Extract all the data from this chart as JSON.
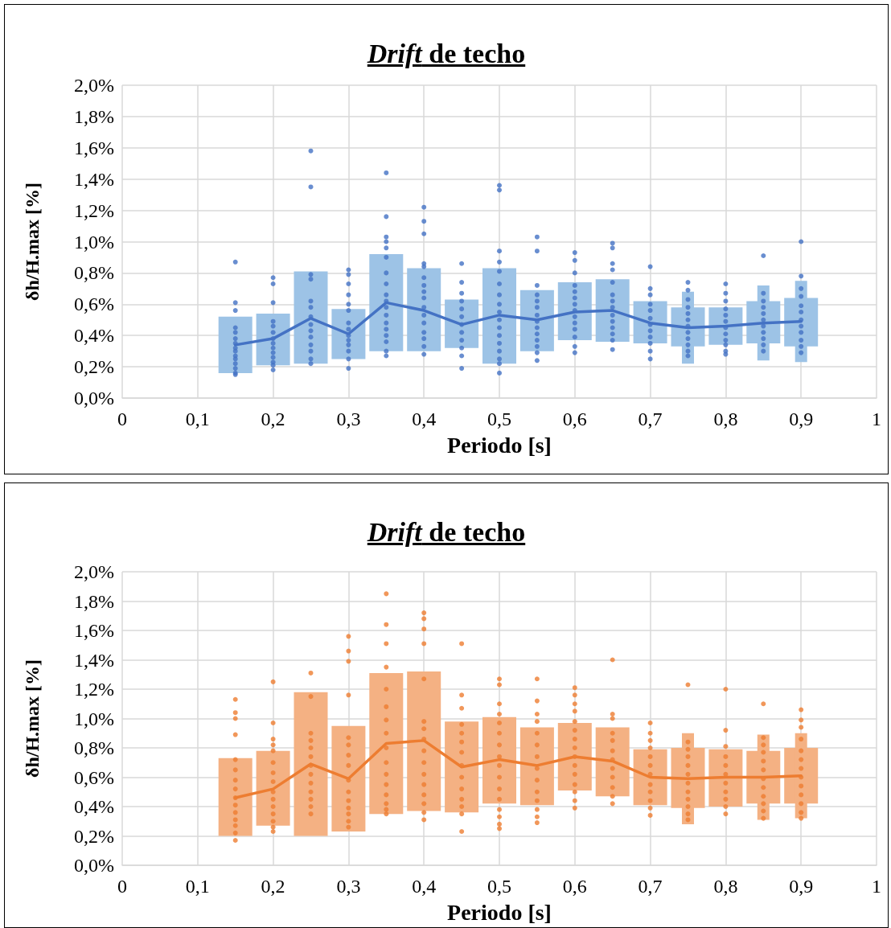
{
  "chart_data": [
    {
      "type": "bar",
      "title": "Drift de techo",
      "xlabel": "Periodo [s]",
      "ylabel": "δh/H.max [%]",
      "grid": true,
      "xlim": [
        0,
        1
      ],
      "xticks": [
        {
          "value": 0,
          "label": "0"
        },
        {
          "value": 0.1,
          "label": "0,1"
        },
        {
          "value": 0.2,
          "label": "0,2"
        },
        {
          "value": 0.3,
          "label": "0,3"
        },
        {
          "value": 0.4,
          "label": "0,4"
        },
        {
          "value": 0.5,
          "label": "0,5"
        },
        {
          "value": 0.6,
          "label": "0,6"
        },
        {
          "value": 0.7,
          "label": "0,7"
        },
        {
          "value": 0.8,
          "label": "0,8"
        },
        {
          "value": 0.9,
          "label": "0,9"
        },
        {
          "value": 1,
          "label": "1"
        }
      ],
      "ylim": [
        0,
        2
      ],
      "yticks": [
        {
          "value": 0,
          "label": "0,0%"
        },
        {
          "value": 0.2,
          "label": "0,2%"
        },
        {
          "value": 0.4,
          "label": "0,4%"
        },
        {
          "value": 0.6,
          "label": "0,6%"
        },
        {
          "value": 0.8,
          "label": "0,8%"
        },
        {
          "value": 1,
          "label": "1,0%"
        },
        {
          "value": 1.2,
          "label": "1,2%"
        },
        {
          "value": 1.4,
          "label": "1,4%"
        },
        {
          "value": 1.6,
          "label": "1,6%"
        },
        {
          "value": 1.8,
          "label": "1,8%"
        },
        {
          "value": 2,
          "label": "2,0%"
        }
      ],
      "series": [
        {
          "color": "#9dc3e6",
          "x": [
            0.15,
            0.2,
            0.25,
            0.3,
            0.35,
            0.4,
            0.45,
            0.5,
            0.55,
            0.6,
            0.65,
            0.7,
            0.75,
            0.8,
            0.85,
            0.9
          ],
          "base": [
            0.16,
            0.21,
            0.22,
            0.25,
            0.3,
            0.3,
            0.32,
            0.22,
            0.3,
            0.37,
            0.36,
            0.35,
            0.33,
            0.34,
            0.35,
            0.33
          ],
          "values": [
            0.36,
            0.33,
            0.59,
            0.32,
            0.62,
            0.53,
            0.31,
            0.61,
            0.39,
            0.37,
            0.4,
            0.27,
            0.25,
            0.24,
            0.27,
            0.31
          ]
        },
        {
          "color": "#9dc3e6",
          "x": [
            0.75,
            0.85,
            0.9
          ],
          "base": [
            0.22,
            0.24,
            0.23
          ],
          "values": [
            0.46,
            0.48,
            0.52
          ]
        },
        {
          "type": "scatter",
          "color": "#4472c4",
          "marker": "circle",
          "x": [
            0.15,
            0.15,
            0.15,
            0.15,
            0.15,
            0.15,
            0.15,
            0.15,
            0.15,
            0.15,
            0.15,
            0.15,
            0.15,
            0.15,
            0.15
          ],
          "values": [
            0.87,
            0.61,
            0.56,
            0.45,
            0.42,
            0.38,
            0.35,
            0.32,
            0.3,
            0.27,
            0.25,
            0.22,
            0.19,
            0.16,
            0.15
          ]
        },
        {
          "type": "scatter",
          "color": "#4472c4",
          "marker": "circle",
          "x": [
            0.2,
            0.2,
            0.2,
            0.2,
            0.2,
            0.2,
            0.2,
            0.2,
            0.2,
            0.2,
            0.2,
            0.2,
            0.2,
            0.2
          ],
          "values": [
            0.77,
            0.73,
            0.61,
            0.49,
            0.46,
            0.42,
            0.38,
            0.35,
            0.32,
            0.29,
            0.26,
            0.23,
            0.21,
            0.18
          ]
        },
        {
          "type": "scatter",
          "color": "#4472c4",
          "marker": "circle",
          "x": [
            0.25,
            0.25,
            0.25,
            0.25,
            0.25,
            0.25,
            0.25,
            0.25,
            0.25,
            0.25,
            0.25,
            0.25,
            0.25,
            0.25
          ],
          "values": [
            1.58,
            1.35,
            0.79,
            0.76,
            0.62,
            0.58,
            0.52,
            0.47,
            0.43,
            0.39,
            0.34,
            0.3,
            0.25,
            0.22
          ]
        },
        {
          "type": "scatter",
          "color": "#4472c4",
          "marker": "circle",
          "x": [
            0.3,
            0.3,
            0.3,
            0.3,
            0.3,
            0.3,
            0.3,
            0.3,
            0.3,
            0.3,
            0.3,
            0.3,
            0.3,
            0.3
          ],
          "values": [
            0.82,
            0.79,
            0.73,
            0.66,
            0.6,
            0.56,
            0.48,
            0.44,
            0.4,
            0.37,
            0.34,
            0.3,
            0.25,
            0.19
          ]
        },
        {
          "type": "scatter",
          "color": "#4472c4",
          "marker": "circle",
          "x": [
            0.35,
            0.35,
            0.35,
            0.35,
            0.35,
            0.35,
            0.35,
            0.35,
            0.35,
            0.35,
            0.35,
            0.35,
            0.35,
            0.35,
            0.35,
            0.35,
            0.35,
            0.35
          ],
          "values": [
            1.44,
            1.16,
            1.03,
            1.0,
            0.96,
            0.9,
            0.8,
            0.73,
            0.66,
            0.62,
            0.58,
            0.53,
            0.48,
            0.44,
            0.4,
            0.36,
            0.3,
            0.27
          ]
        },
        {
          "type": "scatter",
          "color": "#4472c4",
          "marker": "circle",
          "x": [
            0.4,
            0.4,
            0.4,
            0.4,
            0.4,
            0.4,
            0.4,
            0.4,
            0.4,
            0.4,
            0.4,
            0.4,
            0.4,
            0.4,
            0.4,
            0.4
          ],
          "values": [
            1.22,
            1.13,
            1.05,
            0.86,
            0.84,
            0.77,
            0.72,
            0.68,
            0.64,
            0.58,
            0.53,
            0.48,
            0.42,
            0.38,
            0.33,
            0.28
          ]
        },
        {
          "type": "scatter",
          "color": "#4472c4",
          "marker": "circle",
          "x": [
            0.45,
            0.45,
            0.45,
            0.45,
            0.45,
            0.45,
            0.45,
            0.45,
            0.45,
            0.45,
            0.45,
            0.45
          ],
          "values": [
            0.86,
            0.74,
            0.67,
            0.62,
            0.57,
            0.52,
            0.47,
            0.42,
            0.37,
            0.32,
            0.27,
            0.19
          ]
        },
        {
          "type": "scatter",
          "color": "#4472c4",
          "marker": "circle",
          "x": [
            0.5,
            0.5,
            0.5,
            0.5,
            0.5,
            0.5,
            0.5,
            0.5,
            0.5,
            0.5,
            0.5,
            0.5,
            0.5,
            0.5,
            0.5,
            0.5,
            0.5
          ],
          "values": [
            1.36,
            1.33,
            0.94,
            0.87,
            0.81,
            0.73,
            0.66,
            0.6,
            0.55,
            0.5,
            0.45,
            0.4,
            0.35,
            0.3,
            0.25,
            0.22,
            0.16
          ]
        },
        {
          "type": "scatter",
          "color": "#4472c4",
          "marker": "circle",
          "x": [
            0.55,
            0.55,
            0.55,
            0.55,
            0.55,
            0.55,
            0.55,
            0.55,
            0.55,
            0.55,
            0.55,
            0.55,
            0.55,
            0.55
          ],
          "values": [
            1.03,
            0.94,
            0.72,
            0.66,
            0.62,
            0.58,
            0.53,
            0.49,
            0.45,
            0.41,
            0.37,
            0.33,
            0.29,
            0.24
          ]
        },
        {
          "type": "scatter",
          "color": "#4472c4",
          "marker": "circle",
          "x": [
            0.6,
            0.6,
            0.6,
            0.6,
            0.6,
            0.6,
            0.6,
            0.6,
            0.6,
            0.6,
            0.6,
            0.6,
            0.6,
            0.6
          ],
          "values": [
            0.93,
            0.88,
            0.8,
            0.72,
            0.68,
            0.64,
            0.6,
            0.56,
            0.52,
            0.48,
            0.44,
            0.39,
            0.33,
            0.29
          ]
        },
        {
          "type": "scatter",
          "color": "#4472c4",
          "marker": "circle",
          "x": [
            0.65,
            0.65,
            0.65,
            0.65,
            0.65,
            0.65,
            0.65,
            0.65,
            0.65,
            0.65,
            0.65,
            0.65,
            0.65,
            0.65
          ],
          "values": [
            0.99,
            0.96,
            0.86,
            0.82,
            0.74,
            0.66,
            0.62,
            0.58,
            0.53,
            0.49,
            0.45,
            0.41,
            0.37,
            0.31
          ]
        },
        {
          "type": "scatter",
          "color": "#4472c4",
          "marker": "circle",
          "x": [
            0.7,
            0.7,
            0.7,
            0.7,
            0.7,
            0.7,
            0.7,
            0.7,
            0.7,
            0.7,
            0.7,
            0.7
          ],
          "values": [
            0.84,
            0.7,
            0.66,
            0.6,
            0.56,
            0.51,
            0.47,
            0.43,
            0.39,
            0.35,
            0.3,
            0.25
          ]
        },
        {
          "type": "scatter",
          "color": "#4472c4",
          "marker": "circle",
          "x": [
            0.75,
            0.75,
            0.75,
            0.75,
            0.75,
            0.75,
            0.75,
            0.75,
            0.75,
            0.75,
            0.75,
            0.75
          ],
          "values": [
            0.74,
            0.69,
            0.63,
            0.58,
            0.54,
            0.5,
            0.46,
            0.42,
            0.38,
            0.34,
            0.3,
            0.27
          ]
        },
        {
          "type": "scatter",
          "color": "#4472c4",
          "marker": "circle",
          "x": [
            0.8,
            0.8,
            0.8,
            0.8,
            0.8,
            0.8,
            0.8,
            0.8,
            0.8,
            0.8,
            0.8,
            0.8
          ],
          "values": [
            0.73,
            0.67,
            0.62,
            0.57,
            0.53,
            0.49,
            0.45,
            0.41,
            0.37,
            0.34,
            0.3,
            0.28
          ]
        },
        {
          "type": "scatter",
          "color": "#4472c4",
          "marker": "circle",
          "x": [
            0.85,
            0.85,
            0.85,
            0.85,
            0.85,
            0.85,
            0.85,
            0.85,
            0.85,
            0.85,
            0.85
          ],
          "values": [
            0.91,
            0.67,
            0.62,
            0.58,
            0.54,
            0.5,
            0.46,
            0.42,
            0.38,
            0.34,
            0.3
          ]
        },
        {
          "type": "scatter",
          "color": "#4472c4",
          "marker": "circle",
          "x": [
            0.9,
            0.9,
            0.9,
            0.9,
            0.9,
            0.9,
            0.9,
            0.9,
            0.9,
            0.9,
            0.9,
            0.9
          ],
          "values": [
            1.0,
            0.78,
            0.7,
            0.65,
            0.59,
            0.55,
            0.5,
            0.46,
            0.42,
            0.37,
            0.33,
            0.29
          ]
        },
        {
          "type": "line",
          "color": "#4472c4",
          "marker": "none",
          "x": [
            0.15,
            0.2,
            0.25,
            0.3,
            0.35,
            0.4,
            0.45,
            0.5,
            0.55,
            0.6,
            0.65,
            0.7,
            0.75,
            0.8,
            0.85,
            0.9
          ],
          "values": [
            0.34,
            0.38,
            0.51,
            0.41,
            0.61,
            0.56,
            0.47,
            0.53,
            0.5,
            0.55,
            0.56,
            0.48,
            0.45,
            0.46,
            0.48,
            0.49
          ]
        }
      ]
    },
    {
      "type": "bar",
      "title": "Drift de techo",
      "xlabel": "Periodo [s]",
      "ylabel": "δh/H.max [%]",
      "grid": true,
      "xlim": [
        0,
        1
      ],
      "xticks": [
        {
          "value": 0,
          "label": "0"
        },
        {
          "value": 0.1,
          "label": "0,1"
        },
        {
          "value": 0.2,
          "label": "0,2"
        },
        {
          "value": 0.3,
          "label": "0,3"
        },
        {
          "value": 0.4,
          "label": "0,4"
        },
        {
          "value": 0.5,
          "label": "0,5"
        },
        {
          "value": 0.6,
          "label": "0,6"
        },
        {
          "value": 0.7,
          "label": "0,7"
        },
        {
          "value": 0.8,
          "label": "0,8"
        },
        {
          "value": 0.9,
          "label": "0,9"
        },
        {
          "value": 1,
          "label": "1"
        }
      ],
      "ylim": [
        0,
        2
      ],
      "yticks": [
        {
          "value": 0,
          "label": "0,0%"
        },
        {
          "value": 0.2,
          "label": "0,2%"
        },
        {
          "value": 0.4,
          "label": "0,4%"
        },
        {
          "value": 0.6,
          "label": "0,6%"
        },
        {
          "value": 0.8,
          "label": "0,8%"
        },
        {
          "value": 1,
          "label": "1,0%"
        },
        {
          "value": 1.2,
          "label": "1,2%"
        },
        {
          "value": 1.4,
          "label": "1,4%"
        },
        {
          "value": 1.6,
          "label": "1,6%"
        },
        {
          "value": 1.8,
          "label": "1,8%"
        },
        {
          "value": 2,
          "label": "2,0%"
        }
      ],
      "series": [
        {
          "color": "#f4b183",
          "x": [
            0.15,
            0.2,
            0.25,
            0.3,
            0.35,
            0.4,
            0.45,
            0.5,
            0.55,
            0.6,
            0.65,
            0.7,
            0.75,
            0.8,
            0.85,
            0.9
          ],
          "base": [
            0.2,
            0.27,
            0.2,
            0.23,
            0.35,
            0.37,
            0.36,
            0.42,
            0.41,
            0.51,
            0.47,
            0.41,
            0.39,
            0.4,
            0.42,
            0.42
          ],
          "values": [
            0.53,
            0.51,
            0.98,
            0.72,
            0.96,
            0.95,
            0.62,
            0.59,
            0.53,
            0.46,
            0.47,
            0.38,
            0.41,
            0.39,
            0.36,
            0.38
          ]
        },
        {
          "color": "#f4b183",
          "x": [
            0.75,
            0.85,
            0.9
          ],
          "base": [
            0.28,
            0.31,
            0.32
          ],
          "values": [
            0.62,
            0.58,
            0.58
          ]
        },
        {
          "type": "scatter",
          "color": "#ed7d31",
          "marker": "circle",
          "x": [
            0.15,
            0.15,
            0.15,
            0.15,
            0.15,
            0.15,
            0.15,
            0.15,
            0.15,
            0.15,
            0.15,
            0.15,
            0.15,
            0.15,
            0.15
          ],
          "values": [
            1.13,
            1.04,
            1.0,
            0.89,
            0.72,
            0.65,
            0.58,
            0.52,
            0.46,
            0.41,
            0.36,
            0.31,
            0.27,
            0.22,
            0.17
          ]
        },
        {
          "type": "scatter",
          "color": "#ed7d31",
          "marker": "circle",
          "x": [
            0.2,
            0.2,
            0.2,
            0.2,
            0.2,
            0.2,
            0.2,
            0.2,
            0.2,
            0.2,
            0.2,
            0.2,
            0.2,
            0.2,
            0.2
          ],
          "values": [
            1.25,
            0.97,
            0.86,
            0.82,
            0.78,
            0.7,
            0.63,
            0.57,
            0.5,
            0.45,
            0.4,
            0.35,
            0.3,
            0.26,
            0.23
          ]
        },
        {
          "type": "scatter",
          "color": "#ed7d31",
          "marker": "circle",
          "x": [
            0.25,
            0.25,
            0.25,
            0.25,
            0.25,
            0.25,
            0.25,
            0.25,
            0.25,
            0.25,
            0.25,
            0.25,
            0.25
          ],
          "values": [
            1.31,
            1.15,
            0.9,
            0.85,
            0.8,
            0.74,
            0.68,
            0.62,
            0.56,
            0.5,
            0.45,
            0.4,
            0.35
          ]
        },
        {
          "type": "scatter",
          "color": "#ed7d31",
          "marker": "circle",
          "x": [
            0.3,
            0.3,
            0.3,
            0.3,
            0.3,
            0.3,
            0.3,
            0.3,
            0.3,
            0.3,
            0.3,
            0.3,
            0.3,
            0.3,
            0.3
          ],
          "values": [
            1.56,
            1.46,
            1.39,
            1.16,
            0.87,
            0.82,
            0.75,
            0.68,
            0.58,
            0.5,
            0.44,
            0.39,
            0.35,
            0.3,
            0.26
          ]
        },
        {
          "type": "scatter",
          "color": "#ed7d31",
          "marker": "circle",
          "x": [
            0.35,
            0.35,
            0.35,
            0.35,
            0.35,
            0.35,
            0.35,
            0.35,
            0.35,
            0.35,
            0.35,
            0.35,
            0.35,
            0.35,
            0.35,
            0.35
          ],
          "values": [
            1.85,
            1.64,
            1.51,
            1.35,
            1.2,
            1.08,
            0.99,
            0.9,
            0.8,
            0.7,
            0.62,
            0.55,
            0.48,
            0.42,
            0.38,
            0.35
          ]
        },
        {
          "type": "scatter",
          "color": "#ed7d31",
          "marker": "circle",
          "x": [
            0.4,
            0.4,
            0.4,
            0.4,
            0.4,
            0.4,
            0.4,
            0.4,
            0.4,
            0.4,
            0.4,
            0.4,
            0.4,
            0.4,
            0.4,
            0.4
          ],
          "values": [
            1.72,
            1.68,
            1.61,
            1.51,
            1.27,
            0.98,
            0.93,
            0.86,
            0.78,
            0.7,
            0.62,
            0.55,
            0.48,
            0.42,
            0.36,
            0.31
          ]
        },
        {
          "type": "scatter",
          "color": "#ed7d31",
          "marker": "circle",
          "x": [
            0.45,
            0.45,
            0.45,
            0.45,
            0.45,
            0.45,
            0.45,
            0.45,
            0.45,
            0.45,
            0.45,
            0.45,
            0.45,
            0.45
          ],
          "values": [
            1.51,
            1.16,
            1.07,
            0.96,
            0.9,
            0.84,
            0.77,
            0.68,
            0.6,
            0.52,
            0.45,
            0.4,
            0.35,
            0.23
          ]
        },
        {
          "type": "scatter",
          "color": "#ed7d31",
          "marker": "circle",
          "x": [
            0.5,
            0.5,
            0.5,
            0.5,
            0.5,
            0.5,
            0.5,
            0.5,
            0.5,
            0.5,
            0.5,
            0.5,
            0.5,
            0.5,
            0.5,
            0.5
          ],
          "values": [
            1.27,
            1.23,
            1.1,
            1.03,
            0.97,
            0.9,
            0.82,
            0.74,
            0.68,
            0.6,
            0.52,
            0.45,
            0.38,
            0.33,
            0.28,
            0.25
          ]
        },
        {
          "type": "scatter",
          "color": "#ed7d31",
          "marker": "circle",
          "x": [
            0.55,
            0.55,
            0.55,
            0.55,
            0.55,
            0.55,
            0.55,
            0.55,
            0.55,
            0.55,
            0.55,
            0.55,
            0.55,
            0.55
          ],
          "values": [
            1.27,
            1.12,
            1.03,
            0.98,
            0.9,
            0.82,
            0.74,
            0.66,
            0.58,
            0.5,
            0.44,
            0.38,
            0.33,
            0.29
          ]
        },
        {
          "type": "scatter",
          "color": "#ed7d31",
          "marker": "circle",
          "x": [
            0.6,
            0.6,
            0.6,
            0.6,
            0.6,
            0.6,
            0.6,
            0.6,
            0.6,
            0.6,
            0.6,
            0.6,
            0.6,
            0.6,
            0.6
          ],
          "values": [
            1.21,
            1.16,
            1.1,
            1.05,
            0.98,
            0.92,
            0.86,
            0.8,
            0.74,
            0.68,
            0.62,
            0.55,
            0.5,
            0.44,
            0.39
          ]
        },
        {
          "type": "scatter",
          "color": "#ed7d31",
          "marker": "circle",
          "x": [
            0.65,
            0.65,
            0.65,
            0.65,
            0.65,
            0.65,
            0.65,
            0.65,
            0.65,
            0.65,
            0.65,
            0.65
          ],
          "values": [
            1.4,
            1.03,
            1.0,
            0.9,
            0.85,
            0.78,
            0.72,
            0.66,
            0.6,
            0.53,
            0.47,
            0.42
          ]
        },
        {
          "type": "scatter",
          "color": "#ed7d31",
          "marker": "circle",
          "x": [
            0.7,
            0.7,
            0.7,
            0.7,
            0.7,
            0.7,
            0.7,
            0.7,
            0.7,
            0.7,
            0.7,
            0.7
          ],
          "values": [
            0.97,
            0.9,
            0.85,
            0.8,
            0.74,
            0.68,
            0.62,
            0.55,
            0.5,
            0.44,
            0.39,
            0.34
          ]
        },
        {
          "type": "scatter",
          "color": "#ed7d31",
          "marker": "circle",
          "x": [
            0.75,
            0.75,
            0.75,
            0.75,
            0.75,
            0.75,
            0.75,
            0.75,
            0.75,
            0.75,
            0.75,
            0.75
          ],
          "values": [
            1.23,
            0.84,
            0.79,
            0.74,
            0.68,
            0.62,
            0.56,
            0.5,
            0.45,
            0.4,
            0.35,
            0.31
          ]
        },
        {
          "type": "scatter",
          "color": "#ed7d31",
          "marker": "circle",
          "x": [
            0.8,
            0.8,
            0.8,
            0.8,
            0.8,
            0.8,
            0.8,
            0.8,
            0.8,
            0.8,
            0.8
          ],
          "values": [
            1.2,
            0.92,
            0.81,
            0.74,
            0.68,
            0.62,
            0.56,
            0.5,
            0.45,
            0.4,
            0.35
          ]
        },
        {
          "type": "scatter",
          "color": "#ed7d31",
          "marker": "circle",
          "x": [
            0.85,
            0.85,
            0.85,
            0.85,
            0.85,
            0.85,
            0.85,
            0.85,
            0.85,
            0.85,
            0.85,
            0.85
          ],
          "values": [
            1.1,
            0.87,
            0.82,
            0.77,
            0.71,
            0.65,
            0.59,
            0.53,
            0.47,
            0.42,
            0.37,
            0.32
          ]
        },
        {
          "type": "scatter",
          "color": "#ed7d31",
          "marker": "circle",
          "x": [
            0.9,
            0.9,
            0.9,
            0.9,
            0.9,
            0.9,
            0.9,
            0.9,
            0.9,
            0.9,
            0.9,
            0.9,
            0.9
          ],
          "values": [
            1.06,
            0.99,
            0.94,
            0.86,
            0.78,
            0.72,
            0.66,
            0.6,
            0.54,
            0.48,
            0.42,
            0.36,
            0.32
          ]
        },
        {
          "type": "line",
          "color": "#ed7d31",
          "marker": "none",
          "x": [
            0.15,
            0.2,
            0.25,
            0.3,
            0.35,
            0.4,
            0.45,
            0.5,
            0.55,
            0.6,
            0.65,
            0.7,
            0.75,
            0.8,
            0.85,
            0.9
          ],
          "values": [
            0.46,
            0.52,
            0.69,
            0.59,
            0.83,
            0.85,
            0.67,
            0.72,
            0.68,
            0.74,
            0.71,
            0.6,
            0.59,
            0.6,
            0.6,
            0.61
          ]
        }
      ]
    }
  ]
}
